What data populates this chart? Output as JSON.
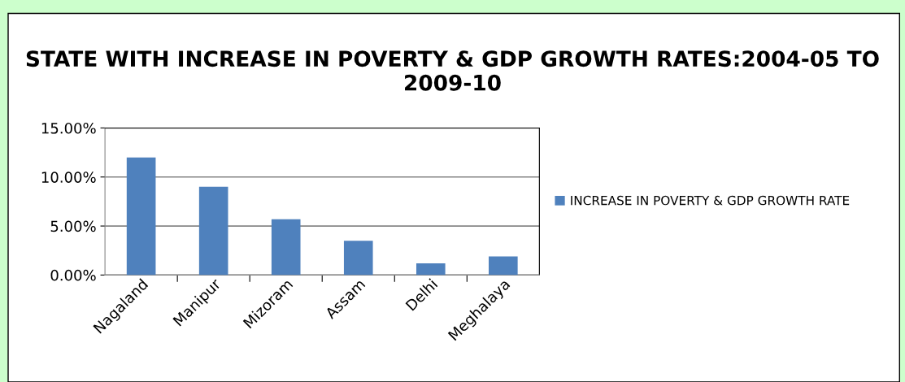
{
  "chart_data": {
    "type": "bar",
    "title": "STATE WITH INCREASE IN POVERTY & GDP GROWTH RATES:2004-05 TO 2009-10",
    "categories": [
      "Nagaland",
      "Manipur",
      "Mizoram",
      "Assam",
      "Delhi",
      "Meghalaya"
    ],
    "series": [
      {
        "name": "INCREASE IN POVERTY & GDP GROWTH RATE",
        "color": "#4f81bd",
        "values": [
          12.0,
          9.0,
          5.7,
          3.5,
          1.2,
          1.9
        ]
      }
    ],
    "ylim": [
      0,
      15
    ],
    "yticks": [
      {
        "value": 0,
        "label": "0.00%"
      },
      {
        "value": 5,
        "label": "5.00%"
      },
      {
        "value": 10,
        "label": "10.00%"
      },
      {
        "value": 15,
        "label": "15.00%"
      }
    ],
    "grid": "y",
    "legend": "right"
  }
}
